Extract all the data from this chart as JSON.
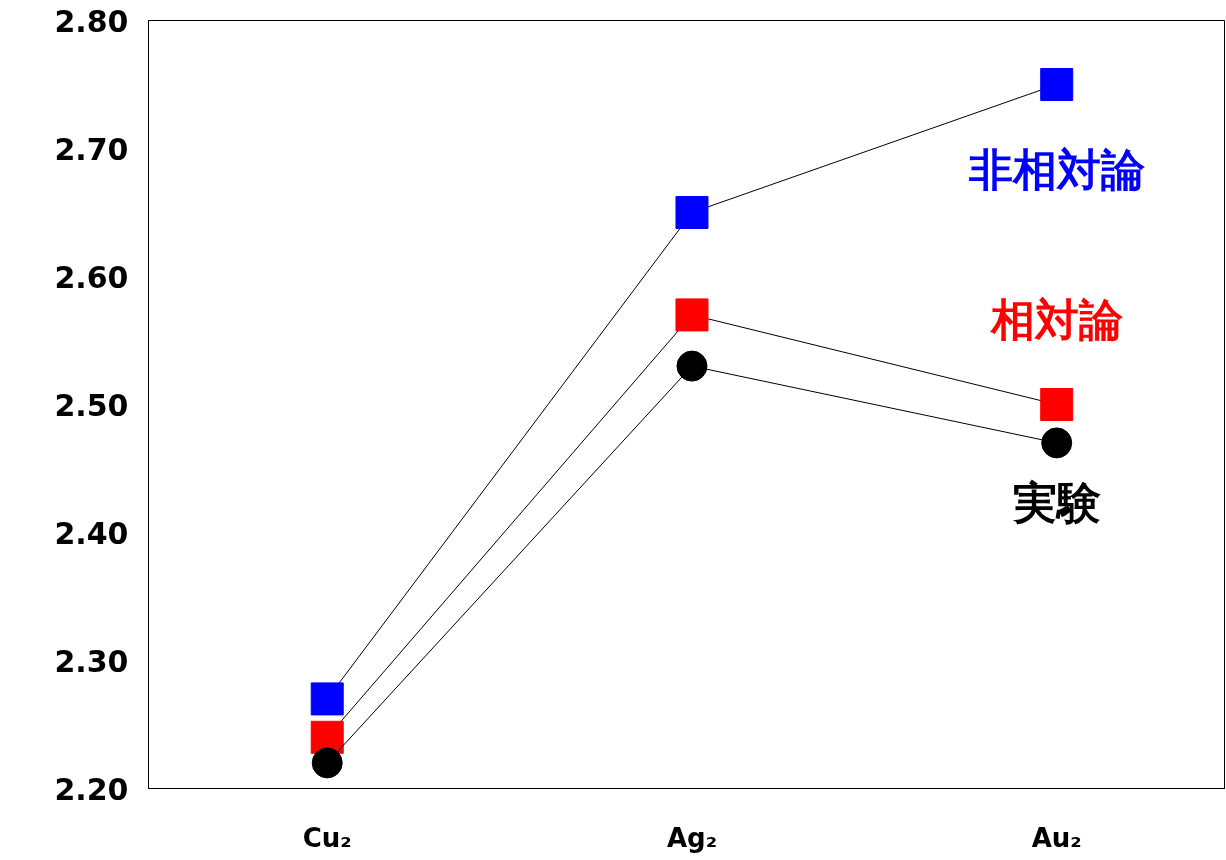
{
  "chart_data": {
    "type": "line",
    "categories": [
      "Cu₂",
      "Ag₂",
      "Au₂"
    ],
    "series": [
      {
        "name": "非相対論",
        "color": "#0000ff",
        "marker": "square",
        "values": [
          2.27,
          2.65,
          2.75
        ]
      },
      {
        "name": "相対論",
        "color": "#ff0000",
        "marker": "square",
        "values": [
          2.24,
          2.57,
          2.5
        ]
      },
      {
        "name": "実験",
        "color": "#000000",
        "marker": "circle",
        "values": [
          2.22,
          2.53,
          2.47
        ]
      }
    ],
    "ylim": [
      2.2,
      2.8
    ],
    "yticks": [
      {
        "value": 2.2,
        "label": "2.20"
      },
      {
        "value": 2.3,
        "label": "2.30"
      },
      {
        "value": 2.4,
        "label": "2.40"
      },
      {
        "value": 2.5,
        "label": "2.50"
      },
      {
        "value": 2.6,
        "label": "2.60"
      },
      {
        "value": 2.7,
        "label": "2.70"
      },
      {
        "value": 2.8,
        "label": "2.80"
      }
    ],
    "grid": false,
    "legend": false
  }
}
